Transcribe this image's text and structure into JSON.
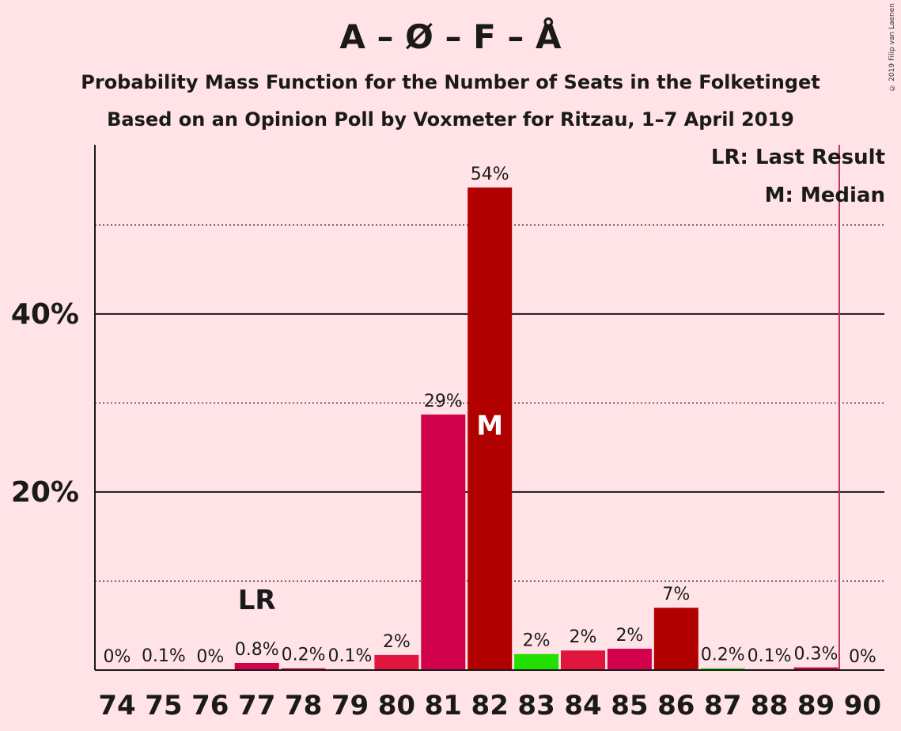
{
  "header": {
    "title": "A – Ø – F – Å",
    "subtitle_line1": "Probability Mass Function for the Number of Seats in the Folketinget",
    "subtitle_line2": "Based on an Opinion Poll by Voxmeter for Ritzau, 1–7 April 2019",
    "credit": "© 2019 Filip van Laenen"
  },
  "legend": {
    "last_result": "LR: Last Result",
    "median": "M: Median"
  },
  "colors": {
    "background": "#FFE3E6",
    "crimson": "#D0004B",
    "darkred": "#B00000",
    "red": "#E0163C",
    "green": "#22E000",
    "majority_line": "#C0305A"
  },
  "chart_data": {
    "type": "bar",
    "x_label": "",
    "y_label": "",
    "categories": [
      "74",
      "75",
      "76",
      "77",
      "78",
      "79",
      "80",
      "81",
      "82",
      "83",
      "84",
      "85",
      "86",
      "87",
      "88",
      "89",
      "90"
    ],
    "values": [
      0,
      0.1,
      0,
      0.8,
      0.2,
      0.1,
      1.7,
      28.7,
      54.2,
      1.8,
      2.2,
      2.4,
      7.0,
      0.2,
      0.1,
      0.3,
      0
    ],
    "value_labels": [
      "0%",
      "0.1%",
      "0%",
      "0.8%",
      "0.2%",
      "0.1%",
      "2%",
      "29%",
      "54%",
      "2%",
      "2%",
      "2%",
      "7%",
      "0.2%",
      "0.1%",
      "0.3%",
      "0%"
    ],
    "bar_colors": [
      "#D0004B",
      "#D0004B",
      "#D0004B",
      "#D0004B",
      "#D0004B",
      "#D0004B",
      "#E0163C",
      "#D0004B",
      "#B00000",
      "#22E000",
      "#E0163C",
      "#D0004B",
      "#B00000",
      "#22E000",
      "#D0004B",
      "#D0004B",
      "#D0004B"
    ],
    "ylim": [
      0,
      59
    ],
    "y_ticks": [
      20,
      40
    ],
    "y_tick_labels": [
      "20%",
      "40%"
    ],
    "dotted_gridlines": [
      10,
      30,
      50
    ],
    "last_result_seat": "77",
    "last_result_marker": "LR",
    "median_seat": "82",
    "median_marker": "M",
    "majority_line_after": "89"
  }
}
